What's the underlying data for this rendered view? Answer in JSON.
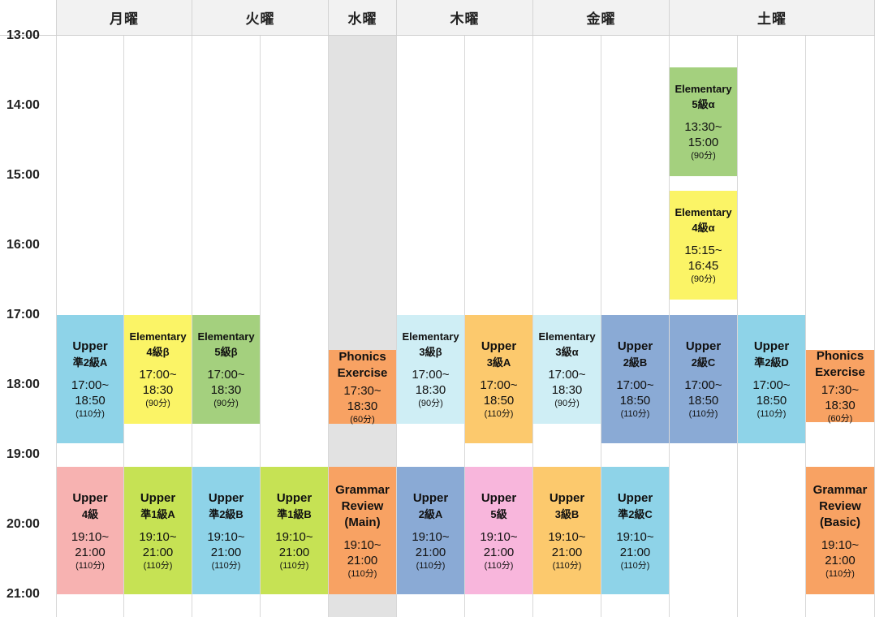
{
  "days": [
    "月曜",
    "火曜",
    "水曜",
    "木曜",
    "金曜",
    "土曜"
  ],
  "times": [
    "13:00",
    "14:00",
    "15:00",
    "16:00",
    "17:00",
    "18:00",
    "19:00",
    "20:00",
    "21:00"
  ],
  "colors": {
    "blue": "#8ed3e8",
    "light_blue": "#cfeef5",
    "yellow": "#fbf466",
    "green": "#a4d07e",
    "orange": "#f8a263",
    "peach": "#fcc96d",
    "steel": "#8aaad5",
    "pink": "#f7b2b1",
    "lime": "#c6e254",
    "magenta": "#f8b6dc",
    "shaded": "#e2e2e2"
  },
  "blocks": [
    {
      "col": 0,
      "row": "a",
      "level": "Upper",
      "grade": "準2級A",
      "start": "17:00~",
      "end": "18:50",
      "duration": "(110分)",
      "color": "blue"
    },
    {
      "col": 1,
      "row": "a",
      "level": "Elementary",
      "grade": "4級β",
      "start": "17:00~",
      "end": "18:30",
      "duration": "(90分)",
      "color": "yellow"
    },
    {
      "col": 2,
      "row": "a",
      "level": "Elementary",
      "grade": "5級β",
      "start": "17:00~",
      "end": "18:30",
      "duration": "(90分)",
      "color": "green"
    },
    {
      "col": 4,
      "row": "a",
      "level": "Phonics",
      "grade": "Exercise",
      "start": "17:30~",
      "end": "18:30",
      "duration": "(60分)",
      "color": "orange"
    },
    {
      "col": 5,
      "row": "a",
      "level": "Elementary",
      "grade": "3級β",
      "start": "17:00~",
      "end": "18:30",
      "duration": "(90分)",
      "color": "light_blue"
    },
    {
      "col": 6,
      "row": "a",
      "level": "Upper",
      "grade": "3級A",
      "start": "17:00~",
      "end": "18:50",
      "duration": "(110分)",
      "color": "peach"
    },
    {
      "col": 7,
      "row": "a",
      "level": "Elementary",
      "grade": "3級α",
      "start": "17:00~",
      "end": "18:30",
      "duration": "(90分)",
      "color": "light_blue"
    },
    {
      "col": 8,
      "row": "a",
      "level": "Upper",
      "grade": "2級B",
      "start": "17:00~",
      "end": "18:50",
      "duration": "(110分)",
      "color": "steel"
    },
    {
      "col": 9,
      "row": "a",
      "level": "Upper",
      "grade": "2級C",
      "start": "17:00~",
      "end": "18:50",
      "duration": "(110分)",
      "color": "steel"
    },
    {
      "col": 10,
      "row": "a",
      "level": "Upper",
      "grade": "準2級D",
      "start": "17:00~",
      "end": "18:50",
      "duration": "(110分)",
      "color": "blue"
    },
    {
      "col": 11,
      "row": "a",
      "level": "Phonics",
      "grade": "Exercise",
      "start": "17:30~",
      "end": "18:30",
      "duration": "(60分)",
      "color": "orange"
    },
    {
      "col": 9,
      "row": "s1",
      "level": "Elementary",
      "grade": "5級α",
      "start": "13:30~",
      "end": "15:00",
      "duration": "(90分)",
      "color": "green"
    },
    {
      "col": 9,
      "row": "s2",
      "level": "Elementary",
      "grade": "4級α",
      "start": "15:15~",
      "end": "16:45",
      "duration": "(90分)",
      "color": "yellow"
    },
    {
      "col": 0,
      "row": "b",
      "level": "Upper",
      "grade": "4級",
      "start": "19:10~",
      "end": "21:00",
      "duration": "(110分)",
      "color": "pink"
    },
    {
      "col": 1,
      "row": "b",
      "level": "Upper",
      "grade": "準1級A",
      "start": "19:10~",
      "end": "21:00",
      "duration": "(110分)",
      "color": "lime"
    },
    {
      "col": 2,
      "row": "b",
      "level": "Upper",
      "grade": "準2級B",
      "start": "19:10~",
      "end": "21:00",
      "duration": "(110分)",
      "color": "blue"
    },
    {
      "col": 3,
      "row": "b",
      "level": "Upper",
      "grade": "準1級B",
      "start": "19:10~",
      "end": "21:00",
      "duration": "(110分)",
      "color": "lime"
    },
    {
      "col": 4,
      "row": "b",
      "level": "Grammar",
      "grade": "Review\n(Main)",
      "start": "19:10~",
      "end": "21:00",
      "duration": "(110分)",
      "color": "orange"
    },
    {
      "col": 5,
      "row": "b",
      "level": "Upper",
      "grade": "2級A",
      "start": "19:10~",
      "end": "21:00",
      "duration": "(110分)",
      "color": "steel"
    },
    {
      "col": 6,
      "row": "b",
      "level": "Upper",
      "grade": "5級",
      "start": "19:10~",
      "end": "21:00",
      "duration": "(110分)",
      "color": "magenta"
    },
    {
      "col": 7,
      "row": "b",
      "level": "Upper",
      "grade": "3級B",
      "start": "19:10~",
      "end": "21:00",
      "duration": "(110分)",
      "color": "peach"
    },
    {
      "col": 8,
      "row": "b",
      "level": "Upper",
      "grade": "準2級C",
      "start": "19:10~",
      "end": "21:00",
      "duration": "(110分)",
      "color": "blue"
    },
    {
      "col": 11,
      "row": "b",
      "level": "Grammar",
      "grade": "Review\n(Basic)",
      "start": "19:10~",
      "end": "21:00",
      "duration": "(110分)",
      "color": "orange"
    }
  ]
}
